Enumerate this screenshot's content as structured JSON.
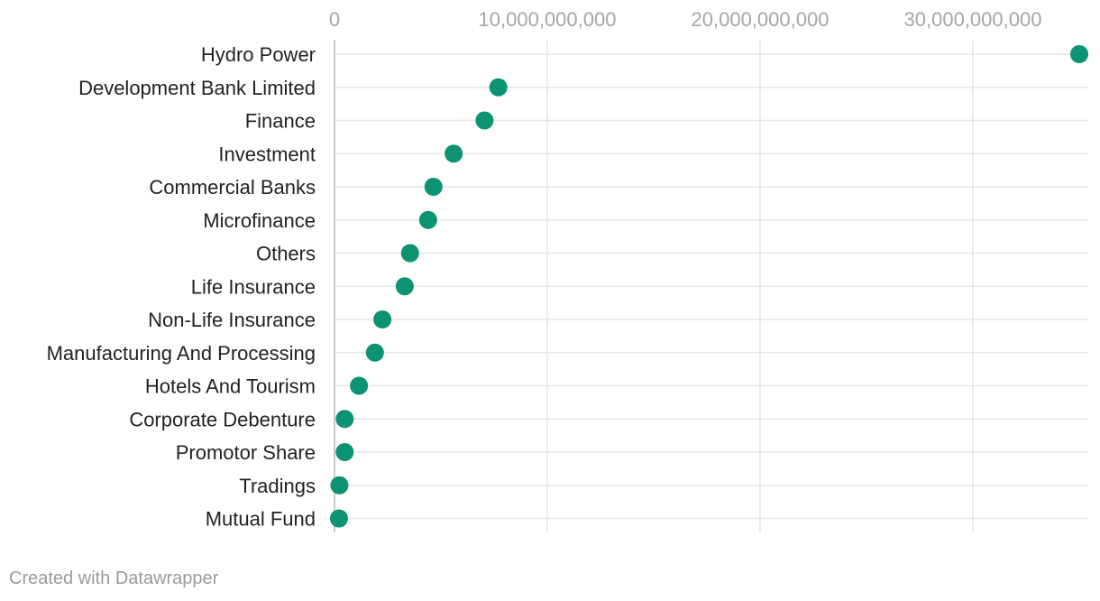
{
  "chart_data": {
    "type": "scatter",
    "orientation": "horizontal-dot",
    "categories": [
      "Hydro Power",
      "Development Bank Limited",
      "Finance",
      "Investment",
      "Commercial Banks",
      "Microfinance",
      "Others",
      "Life Insurance",
      "Non-Life Insurance",
      "Manufacturing And Processing",
      "Hotels And Tourism",
      "Corporate Debenture",
      "Promotor Share",
      "Tradings",
      "Mutual Fund"
    ],
    "values": [
      35000000000,
      7700000000,
      7050000000,
      5600000000,
      4650000000,
      4400000000,
      3550000000,
      3300000000,
      2250000000,
      1900000000,
      1150000000,
      480000000,
      480000000,
      230000000,
      210000000
    ],
    "xlim": [
      0,
      35000000000
    ],
    "x_ticks": [
      0,
      10000000000,
      20000000000,
      30000000000
    ],
    "x_tick_labels": [
      "0",
      "10,000,000,000",
      "20,000,000,000",
      "30,000,000,000"
    ],
    "x_axis_position": "top",
    "grid": true,
    "title": "",
    "xlabel": "",
    "ylabel": "",
    "dot_color": "#0b9372",
    "grid_color": "#e5e5e5",
    "axis_color": "#cccccc"
  },
  "footer": {
    "credit": "Created with Datawrapper"
  }
}
